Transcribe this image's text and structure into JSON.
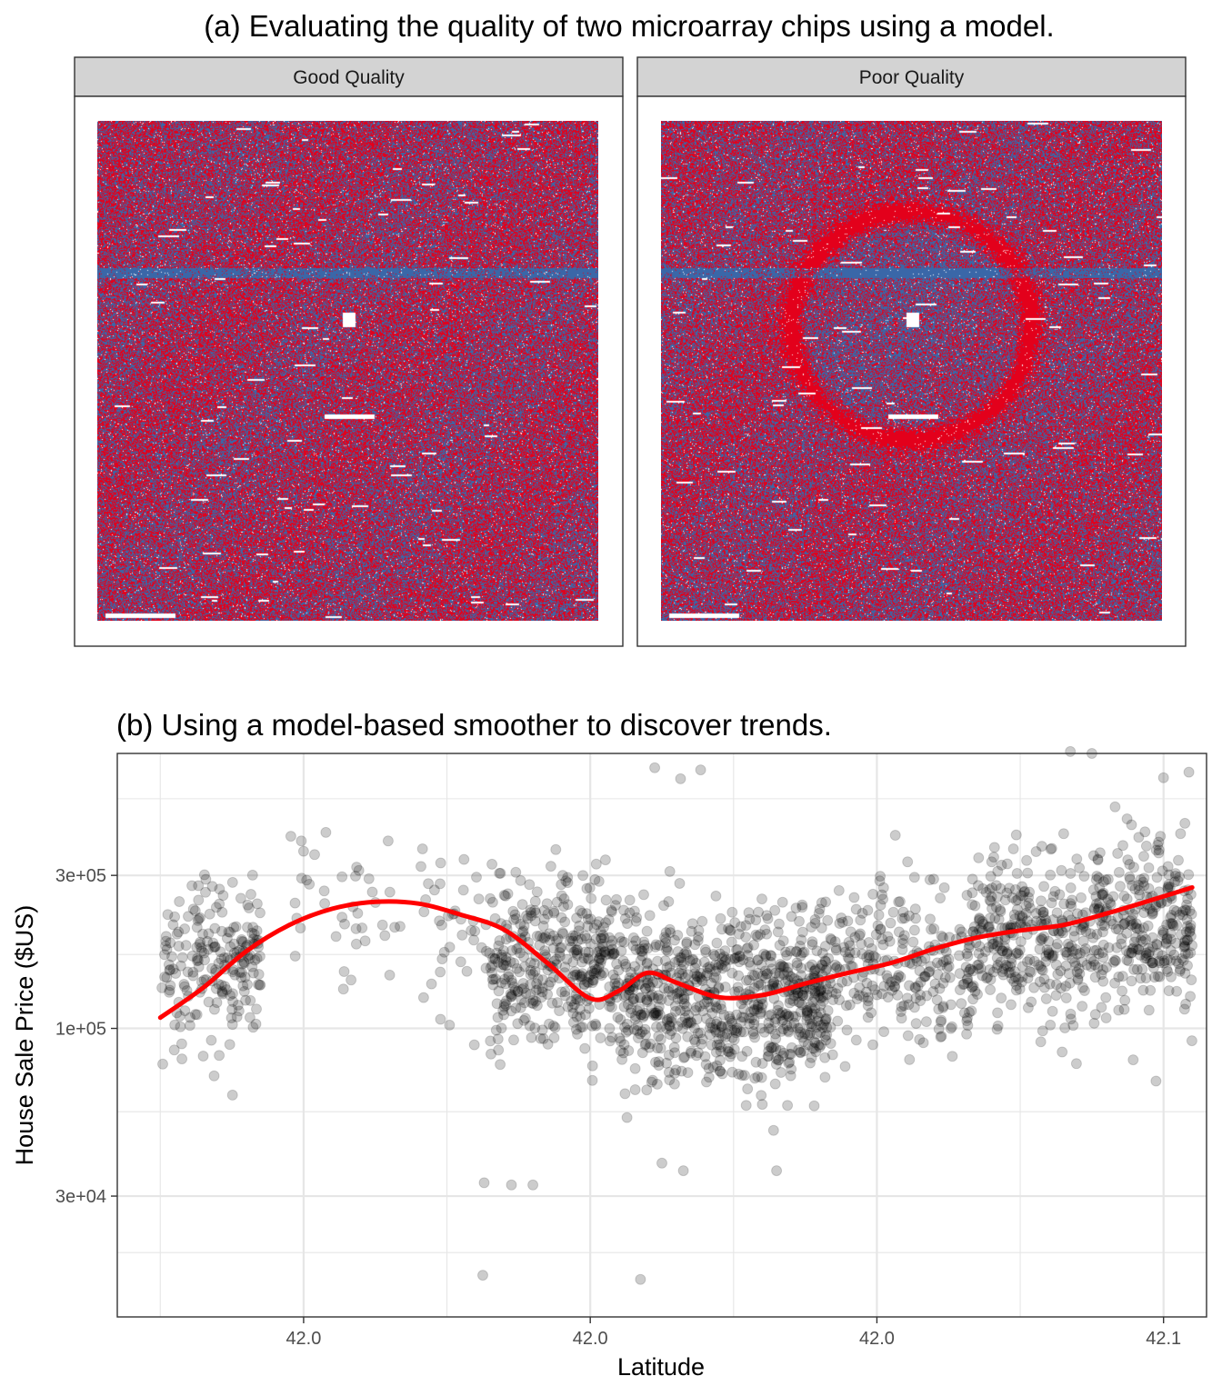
{
  "panel_a": {
    "title": "(a) Evaluating the quality of two microarray chips using a model.",
    "facets": [
      {
        "label": "Good Quality"
      },
      {
        "label": "Poor Quality"
      }
    ],
    "colors": {
      "high": "#e3001b",
      "low": "#3a67a8",
      "missing": "#ffffff",
      "strip": "#d3d3d3"
    }
  },
  "panel_b": {
    "title": "(b) Using a model-based smoother to discover trends.",
    "colors": {
      "points": "#000000",
      "smoother": "#ff0000",
      "grid": "#e6e6e6"
    }
  },
  "chart_data": [
    {
      "type": "heatmap",
      "title": "(a) Evaluating the quality of two microarray chips using a model.",
      "facets": [
        "Good Quality",
        "Poor Quality"
      ],
      "encoding": "residual sign per probe: red = positive, blue = negative, white = missing",
      "features": {
        "Good Quality": "random red/blue noise with one horizontal blue band near the upper third",
        "Poor Quality": "same noise plus a large red ring-shaped artifact in the middle"
      }
    },
    {
      "type": "scatter",
      "title": "(b) Using a model-based smoother to discover trends.",
      "xlabel": "Latitude",
      "ylabel": "House Sale Price ($US)",
      "y_scale": "log10",
      "xlim": [
        41.987,
        42.063
      ],
      "ylim": [
        12600,
        720000
      ],
      "x_ticks": [
        {
          "value": 42.0,
          "label": "42.0"
        },
        {
          "value": 42.02,
          "label": "42.0"
        },
        {
          "value": 42.04,
          "label": "42.0"
        },
        {
          "value": 42.06,
          "label": "42.1"
        }
      ],
      "y_ticks": [
        {
          "value": 30000,
          "label": "3e+04"
        },
        {
          "value": 100000,
          "label": "1e+05"
        },
        {
          "value": 300000,
          "label": "3e+05"
        }
      ],
      "grid": true,
      "clusters": [
        {
          "x": [
            41.99,
            41.992
          ],
          "count": 45,
          "center": 130000
        },
        {
          "x": [
            41.992,
            41.997
          ],
          "count": 160,
          "center": 165000
        },
        {
          "x": [
            41.999,
            42.007
          ],
          "count": 40,
          "center": 225000
        },
        {
          "x": [
            42.008,
            42.013
          ],
          "count": 40,
          "center": 195000
        },
        {
          "x": [
            42.013,
            42.022
          ],
          "count": 380,
          "center": 160000
        },
        {
          "x": [
            42.022,
            42.037
          ],
          "count": 780,
          "center": 125000
        },
        {
          "x": [
            42.037,
            42.047
          ],
          "count": 260,
          "center": 160000
        },
        {
          "x": [
            42.047,
            42.055
          ],
          "count": 300,
          "center": 190000
        },
        {
          "x": [
            42.055,
            42.062
          ],
          "count": 300,
          "center": 210000
        }
      ],
      "outliers": [
        {
          "x": 42.0125,
          "y": 17000
        },
        {
          "x": 42.0235,
          "y": 16500
        },
        {
          "x": 42.0126,
          "y": 33000
        },
        {
          "x": 42.0145,
          "y": 32500
        },
        {
          "x": 42.016,
          "y": 32500
        },
        {
          "x": 42.025,
          "y": 38000
        },
        {
          "x": 42.0265,
          "y": 36000
        },
        {
          "x": 42.033,
          "y": 36000
        },
        {
          "x": 42.0245,
          "y": 650000
        },
        {
          "x": 42.0263,
          "y": 600000
        },
        {
          "x": 42.0277,
          "y": 640000
        },
        {
          "x": 42.0535,
          "y": 730000
        },
        {
          "x": 42.055,
          "y": 720000
        },
        {
          "x": 42.06,
          "y": 605000
        }
      ],
      "smoother": {
        "x": [
          41.99,
          41.993,
          41.996,
          41.999,
          42.002,
          42.005,
          42.008,
          42.011,
          42.014,
          42.017,
          42.02,
          42.022,
          42.024,
          42.026,
          42.029,
          42.032,
          42.035,
          42.038,
          42.041,
          42.044,
          42.047,
          42.05,
          42.053,
          42.056,
          42.059,
          42.062
        ],
        "y": [
          108000,
          134000,
          174000,
          210000,
          236000,
          248000,
          245000,
          226000,
          203000,
          160000,
          124000,
          131000,
          149000,
          139000,
          125000,
          127000,
          138000,
          149000,
          160000,
          177000,
          192000,
          202000,
          210000,
          228000,
          250000,
          275000
        ]
      }
    }
  ]
}
